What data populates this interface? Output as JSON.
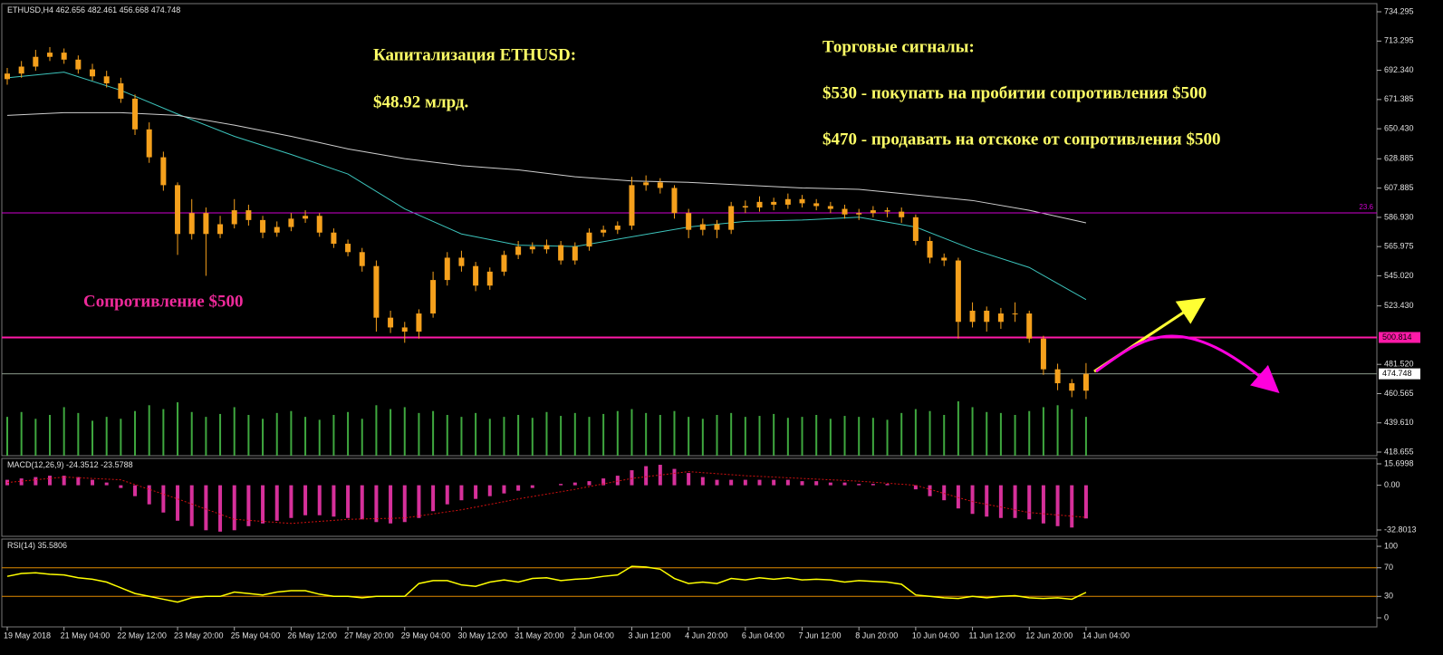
{
  "chart_data": [
    {
      "type": "candlestick",
      "title": "ETHUSD,H4",
      "categories": [
        "19 May 2018",
        null,
        null,
        null,
        "21 May 04:00",
        null,
        null,
        null,
        "22 May 12:00",
        null,
        null,
        null,
        "23 May 20:00",
        null,
        null,
        null,
        "25 May 04:00",
        null,
        null,
        null,
        "26 May 12:00",
        null,
        null,
        null,
        "27 May 20:00",
        null,
        null,
        null,
        "29 May 04:00",
        null,
        null,
        null,
        "30 May 12:00",
        null,
        null,
        null,
        "31 May 20:00",
        null,
        null,
        null,
        "2 Jun 04:00",
        null,
        null,
        null,
        "3 Jun 12:00",
        null,
        null,
        null,
        "4 Jun 20:00",
        null,
        null,
        null,
        "6 Jun 04:00",
        null,
        null,
        null,
        "7 Jun 12:00",
        null,
        null,
        null,
        "8 Jun 20:00",
        null,
        null,
        null,
        "10 Jun 04:00",
        null,
        null,
        null,
        "11 Jun 12:00",
        null,
        null,
        null,
        "12 Jun 20:00",
        null,
        null,
        null,
        "14 Jun 04:00"
      ],
      "open": [
        686,
        690,
        695,
        702,
        705,
        700,
        693,
        688,
        683,
        672,
        650,
        630,
        610,
        575,
        590,
        575,
        582,
        592,
        585,
        576,
        580,
        586,
        588,
        576,
        568,
        562,
        552,
        515,
        508,
        505,
        518,
        542,
        558,
        552,
        538,
        548,
        560,
        566,
        564,
        567,
        556,
        566,
        576,
        578,
        581,
        610,
        612,
        608,
        590,
        578,
        582,
        578,
        595,
        594,
        598,
        596,
        600,
        597,
        595,
        593,
        589,
        590,
        592,
        591,
        587,
        570,
        558,
        556,
        512,
        520,
        512,
        518,
        518,
        500,
        478,
        468,
        462.656
      ],
      "high": [
        694,
        699,
        707,
        709,
        708,
        703,
        697,
        692,
        687,
        675,
        655,
        634,
        612,
        600,
        594,
        588,
        600,
        596,
        588,
        584,
        590,
        592,
        590,
        579,
        571,
        565,
        556,
        520,
        512,
        521,
        548,
        562,
        563,
        555,
        551,
        563,
        570,
        569,
        571,
        570,
        569,
        579,
        581,
        584,
        616,
        617,
        615,
        610,
        593,
        586,
        585,
        598,
        599,
        602,
        601,
        604,
        603,
        600,
        598,
        596,
        593,
        595,
        594,
        594,
        589,
        573,
        561,
        558,
        526,
        523,
        522,
        526,
        520,
        502,
        482,
        471,
        482.461
      ],
      "low": [
        682,
        687,
        692,
        699,
        697,
        690,
        685,
        680,
        669,
        646,
        626,
        606,
        560,
        571,
        545,
        572,
        579,
        581,
        572,
        573,
        577,
        583,
        573,
        565,
        559,
        548,
        505,
        504,
        497,
        500,
        515,
        538,
        548,
        534,
        535,
        545,
        557,
        561,
        561,
        553,
        553,
        563,
        573,
        575,
        578,
        606,
        604,
        586,
        572,
        574,
        572,
        575,
        590,
        591,
        592,
        593,
        594,
        592,
        590,
        586,
        585,
        587,
        587,
        583,
        567,
        554,
        552,
        500,
        508,
        505,
        507,
        512,
        497,
        474,
        463,
        458,
        456.668
      ],
      "close": [
        690,
        695,
        702,
        705,
        700,
        693,
        688,
        683,
        672,
        650,
        630,
        610,
        575,
        590,
        575,
        582,
        592,
        585,
        576,
        580,
        586,
        588,
        576,
        568,
        562,
        552,
        515,
        508,
        505,
        518,
        542,
        558,
        552,
        538,
        548,
        560,
        566,
        564,
        567,
        556,
        566,
        576,
        578,
        581,
        610,
        612,
        608,
        590,
        578,
        582,
        578,
        595,
        594,
        598,
        596,
        600,
        597,
        595,
        593,
        589,
        590,
        592,
        591,
        587,
        570,
        558,
        556,
        512,
        520,
        512,
        518,
        518,
        500,
        478,
        468,
        462.656,
        474.748
      ],
      "volume": [
        40,
        45,
        38,
        42,
        50,
        44,
        36,
        40,
        38,
        46,
        52,
        48,
        55,
        45,
        40,
        43,
        50,
        42,
        38,
        44,
        46,
        40,
        37,
        42,
        45,
        38,
        52,
        48,
        50,
        44,
        46,
        42,
        40,
        44,
        38,
        40,
        42,
        39,
        45,
        41,
        44,
        40,
        43,
        46,
        48,
        44,
        42,
        46,
        40,
        38,
        42,
        44,
        40,
        41,
        43,
        39,
        40,
        42,
        38,
        41,
        40,
        39,
        37,
        44,
        48,
        46,
        42,
        56,
        50,
        45,
        44,
        42,
        46,
        50,
        52,
        48,
        40
      ],
      "color": "#f5a01c",
      "volume_color": "#3fa83f",
      "lines": [
        {
          "color": "#3cc4bc",
          "x": [
            0,
            4,
            8,
            12,
            16,
            20,
            24,
            28,
            32,
            36,
            40,
            44,
            48,
            52,
            56,
            60,
            64,
            68,
            72,
            76
          ],
          "values": [
            687,
            691,
            678,
            661,
            645,
            632,
            618,
            593,
            575,
            567,
            566,
            573,
            580,
            584,
            585,
            587,
            580,
            564,
            551,
            528
          ]
        },
        {
          "color": "#cfcfcf",
          "x": [
            0,
            4,
            8,
            12,
            16,
            20,
            24,
            28,
            32,
            36,
            40,
            44,
            48,
            52,
            56,
            60,
            64,
            68,
            72,
            76
          ],
          "values": [
            660,
            662,
            662,
            660,
            653,
            645,
            636,
            629,
            624,
            621,
            616,
            613,
            612,
            610,
            608,
            607,
            603,
            599,
            592,
            583
          ]
        }
      ],
      "levels": [
        {
          "value": 590.1,
          "label": "23.6",
          "color": "#d000d0"
        },
        {
          "value": 500.814,
          "color": "#ff1aa8"
        },
        {
          "value": 474.748,
          "color": "#8a9a8a"
        }
      ],
      "ylim": [
        416.06,
        739.49
      ],
      "yticks": [
        734.295,
        713.295,
        {
          "value": 692.34,
          "label": "692.340"
        },
        671.385,
        {
          "value": 650.43,
          "label": "650.430"
        },
        628.885,
        607.885,
        {
          "value": 586.93,
          "label": "586.930"
        },
        565.975,
        {
          "value": 545.02,
          "label": "545.020"
        },
        {
          "value": 523.43,
          "label": "523.430"
        },
        {
          "value": 481.52,
          "label": "481.520"
        },
        460.565,
        {
          "value": 439.61,
          "label": "439.610"
        },
        418.655
      ],
      "annotations": [
        "Капитализация ETHUSD:",
        "$48.92 млрд.",
        "Торговые сигналы:",
        "$530 - покупать на пробитии сопротивления $500",
        "$470 - продавать на отскоке от сопротивления $500",
        "Сопротивление $500"
      ]
    },
    {
      "type": "bar",
      "title": "MACD(12,26,9)",
      "values": [
        4,
        5,
        6,
        7,
        7,
        6,
        4,
        2,
        -2,
        -8,
        -14,
        -20,
        -26,
        -30,
        -33,
        -34,
        -33,
        -30,
        -28,
        -26,
        -24,
        -22,
        -22,
        -23,
        -24,
        -25,
        -27,
        -28,
        -27,
        -24,
        -19,
        -14,
        -11,
        -10,
        -8,
        -6,
        -4,
        -2,
        0,
        1,
        2,
        3,
        5,
        7,
        11,
        14,
        15,
        12,
        9,
        6,
        4,
        4,
        4,
        4,
        4,
        4,
        3,
        3,
        2,
        2,
        1,
        1,
        1,
        0,
        -3,
        -8,
        -11,
        -17,
        -21,
        -23,
        -24,
        -24,
        -25,
        -28,
        -30,
        -31,
        -24.3512
      ],
      "color": "#d6309a",
      "signal": {
        "color": "#d01010",
        "x": [
          0,
          4,
          8,
          12,
          16,
          20,
          24,
          28,
          32,
          36,
          40,
          44,
          48,
          52,
          56,
          60,
          64,
          68,
          72,
          76
        ],
        "values": [
          2,
          6,
          4,
          -10,
          -25,
          -28,
          -25,
          -24,
          -18,
          -10,
          -3,
          5,
          10,
          7,
          5,
          3,
          0,
          -12,
          -20,
          -23.5788
        ]
      },
      "ylim": [
        -37.45,
        19.02
      ],
      "yticks": [
        15.6998,
        {
          "value": 0,
          "label": "0.00"
        },
        -32.8013
      ]
    },
    {
      "type": "line",
      "title": "RSI(14)",
      "values": [
        58,
        62,
        63,
        61,
        60,
        56,
        54,
        50,
        42,
        34,
        30,
        26,
        22,
        28,
        30,
        30,
        36,
        34,
        32,
        36,
        38,
        38,
        33,
        30,
        30,
        28,
        30,
        30,
        30,
        48,
        52,
        52,
        46,
        44,
        50,
        53,
        50,
        55,
        56,
        52,
        54,
        55,
        58,
        60,
        72,
        71,
        68,
        55,
        48,
        50,
        48,
        55,
        53,
        56,
        54,
        56,
        53,
        54,
        53,
        50,
        52,
        51,
        50,
        47,
        32,
        30,
        28,
        27,
        30,
        28,
        30,
        31,
        28,
        27,
        28,
        26,
        35.5806
      ],
      "color": "#ffff00",
      "levels": [
        70,
        30
      ],
      "level_color": "#e08a00",
      "ylim": [
        -12.7,
        108.9
      ],
      "yticks": [
        100,
        70,
        30,
        0
      ]
    }
  ]
}
